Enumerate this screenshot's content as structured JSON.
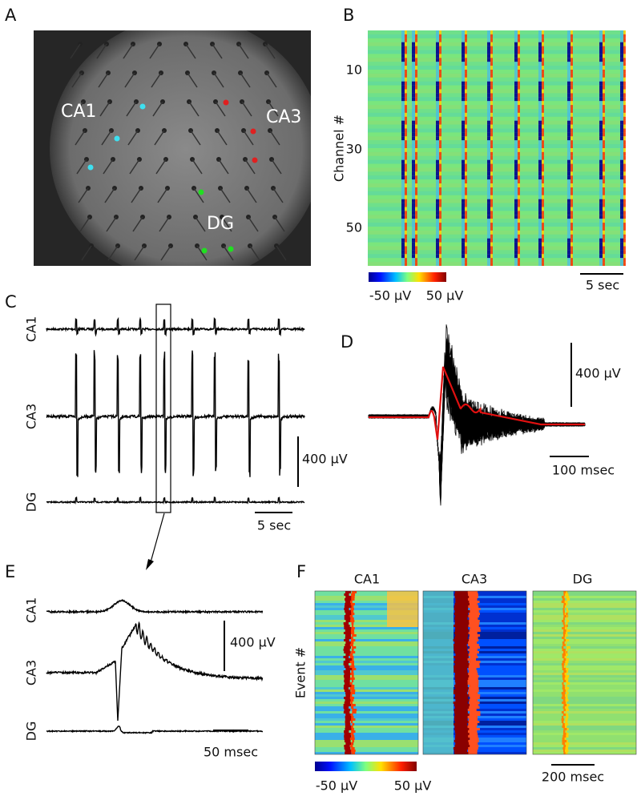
{
  "A": {
    "letter": "A",
    "regions": [
      "CA1",
      "CA3",
      "DG"
    ]
  },
  "B": {
    "letter": "B",
    "y_label": "Channel #",
    "y_ticks": [
      10,
      30,
      50
    ],
    "colorbar": [
      "-50 µV",
      "50 µV"
    ],
    "t_scale": "5 sec"
  },
  "C": {
    "letter": "C",
    "traces": [
      "CA1",
      "CA3",
      "DG"
    ],
    "v_scale": "400 µV",
    "t_scale": "5 sec"
  },
  "D": {
    "letter": "D",
    "v_scale": "400 µV",
    "t_scale": "100 msec"
  },
  "E": {
    "letter": "E",
    "traces": [
      "CA1",
      "CA3",
      "DG"
    ],
    "v_scale": "400 µV",
    "t_scale": "50 msec"
  },
  "F": {
    "letter": "F",
    "columns": [
      "CA1",
      "CA3",
      "DG"
    ],
    "y_label": "Event #",
    "colorbar": [
      "-50 µV",
      "50 µV"
    ],
    "t_scale": "200 msec"
  }
}
